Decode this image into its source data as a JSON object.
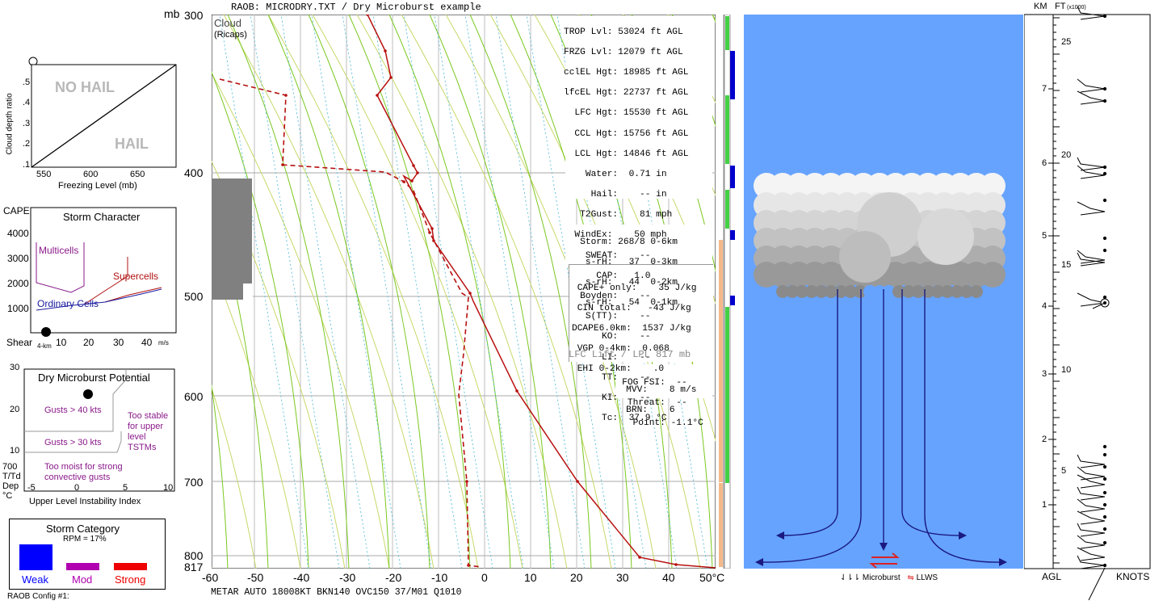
{
  "header": {
    "mb_unit": "mb",
    "title": "RAOB:  MICRODRY.TXT / Dry Microburst example",
    "cloud_label": "Cloud",
    "ricaps_label": "(Ricaps)"
  },
  "hail_chart": {
    "no_hail": "NO HAIL",
    "hail": "HAIL",
    "ylabel": "Cloud depth ratio",
    "xlabel": "Freezing Level (mb)",
    "y_ticks": [
      ".5",
      ".4",
      ".3",
      ".2",
      ".1"
    ],
    "x_ticks": [
      "550",
      "600",
      "650"
    ]
  },
  "storm_character": {
    "title": "Storm Character",
    "cape_label": "CAPE",
    "y_ticks": [
      "4000",
      "3000",
      "2000",
      "1000"
    ],
    "x_ticks": [
      "10",
      "20",
      "30",
      "40"
    ],
    "shear_label": "Shear",
    "km_label": "4-km",
    "ms_label": "m/s",
    "multicells": "Multicells",
    "supercells": "Supercells",
    "ordinary": "Ordinary Cells"
  },
  "microburst_potential": {
    "title": "Dry Microburst Potential",
    "gusts40": "Gusts > 40 kts",
    "gusts30": "Gusts > 30 kts",
    "too_moist_1": "Too moist for strong",
    "too_moist_2": "convective gusts",
    "too_stable_1": "Too stable",
    "too_stable_2": "for upper",
    "too_stable_3": "level",
    "too_stable_4": "TSTMs",
    "y_ticks": [
      "30",
      "20",
      "10"
    ],
    "x_ticks": [
      "-5",
      "0",
      "5",
      "10"
    ],
    "ylab1": "700",
    "ylab2": "T/Td",
    "ylab3": "Dep",
    "ylab4": "°C",
    "xlabel": "Upper Level Instability Index"
  },
  "storm_category": {
    "title": "Storm Category",
    "rpm": "RPM = 17%",
    "weak": "Weak",
    "mod": "Mod",
    "strong": "Strong",
    "colors": {
      "weak": "#0000ff",
      "mod": "#b000b0",
      "strong": "#ee0000"
    }
  },
  "config_label": "RAOB Config #1:",
  "skewt": {
    "pressure_labels": [
      "300",
      "400",
      "500",
      "600",
      "700",
      "800",
      "817"
    ],
    "temp_labels": [
      "-60",
      "-50",
      "-40",
      "-30",
      "-20",
      "-10",
      "0",
      "10",
      "20",
      "30",
      "40",
      "50°C"
    ],
    "metar": "METAR AUTO 18008KT BKN140 OVC150 37/M01 Q1010"
  },
  "readouts": {
    "trop": "TROP Lvl: 53024 ft AGL",
    "frzg": "FRZG Lvl: 12079 ft AGL",
    "ccl_el": "cclEL Hgt: 18985 ft AGL",
    "lfc_el": "lfcEL Hgt: 22737 ft AGL",
    "lfc": "  LFC Hgt: 15530 ft AGL",
    "ccl": "  CCL Hgt: 15756 ft AGL",
    "lcl": "  LCL Hgt: 14846 ft AGL",
    "water": "    Water:  0.71 in",
    "hail": "     Hail:    -- in",
    "t2gust": "   T2Gust:    81 mph",
    "windex": "  WindEx:    50 mph",
    "sweat": "    SWEAT:    --",
    "cap": "      CAP:   1.0",
    "boyden": "   Boyden:    --",
    "stt": "    S(TT):    --",
    "ko": "       KO:    --",
    "li": "       LI:    --",
    "tt": "       TT:    --",
    "ki": "       KI:    --",
    "tc": "       Tc:  37.9 °C",
    "storm": "   Storm: 268/8 0-6km",
    "srh3": "    s-rH:   37  0-3km",
    "srh2": "    s-rH:   44  0-2km",
    "srh1": "    s-rH:   54  0-1km",
    "cape": " CAPE+ only:    35 J/kg",
    "cin": " CIN total:   -43 J/kg",
    "dcape": "DCAPE6.0km:  1537 J/kg",
    "vgp": " VGP 0-4km:  0.068",
    "ehi": " EHI 0-2km:    .0",
    "mvv": "          MVV:    8 m/s",
    "brn": "          BRN:    6",
    "lfc_lift": "LFC Lift / LPL 817 mb",
    "fog": "   FOG FSI:  --",
    "threat": "    Threat:  --",
    "point": "     Point: -1.1°C"
  },
  "cloud_panel": {
    "legend_microburst": "Microburst",
    "legend_llws": "LLWS",
    "sky_color": "#66a3ff"
  },
  "wind_column": {
    "km_label": "KM",
    "ft_label": "FT",
    "ft_scale": "(x1000)",
    "km_ticks": [
      "7",
      "6",
      "5",
      "4",
      "3",
      "2",
      "1"
    ],
    "ft_ticks": [
      "25",
      "20",
      "15",
      "10",
      "5"
    ],
    "agl": "AGL",
    "knots": "KNOTS"
  }
}
